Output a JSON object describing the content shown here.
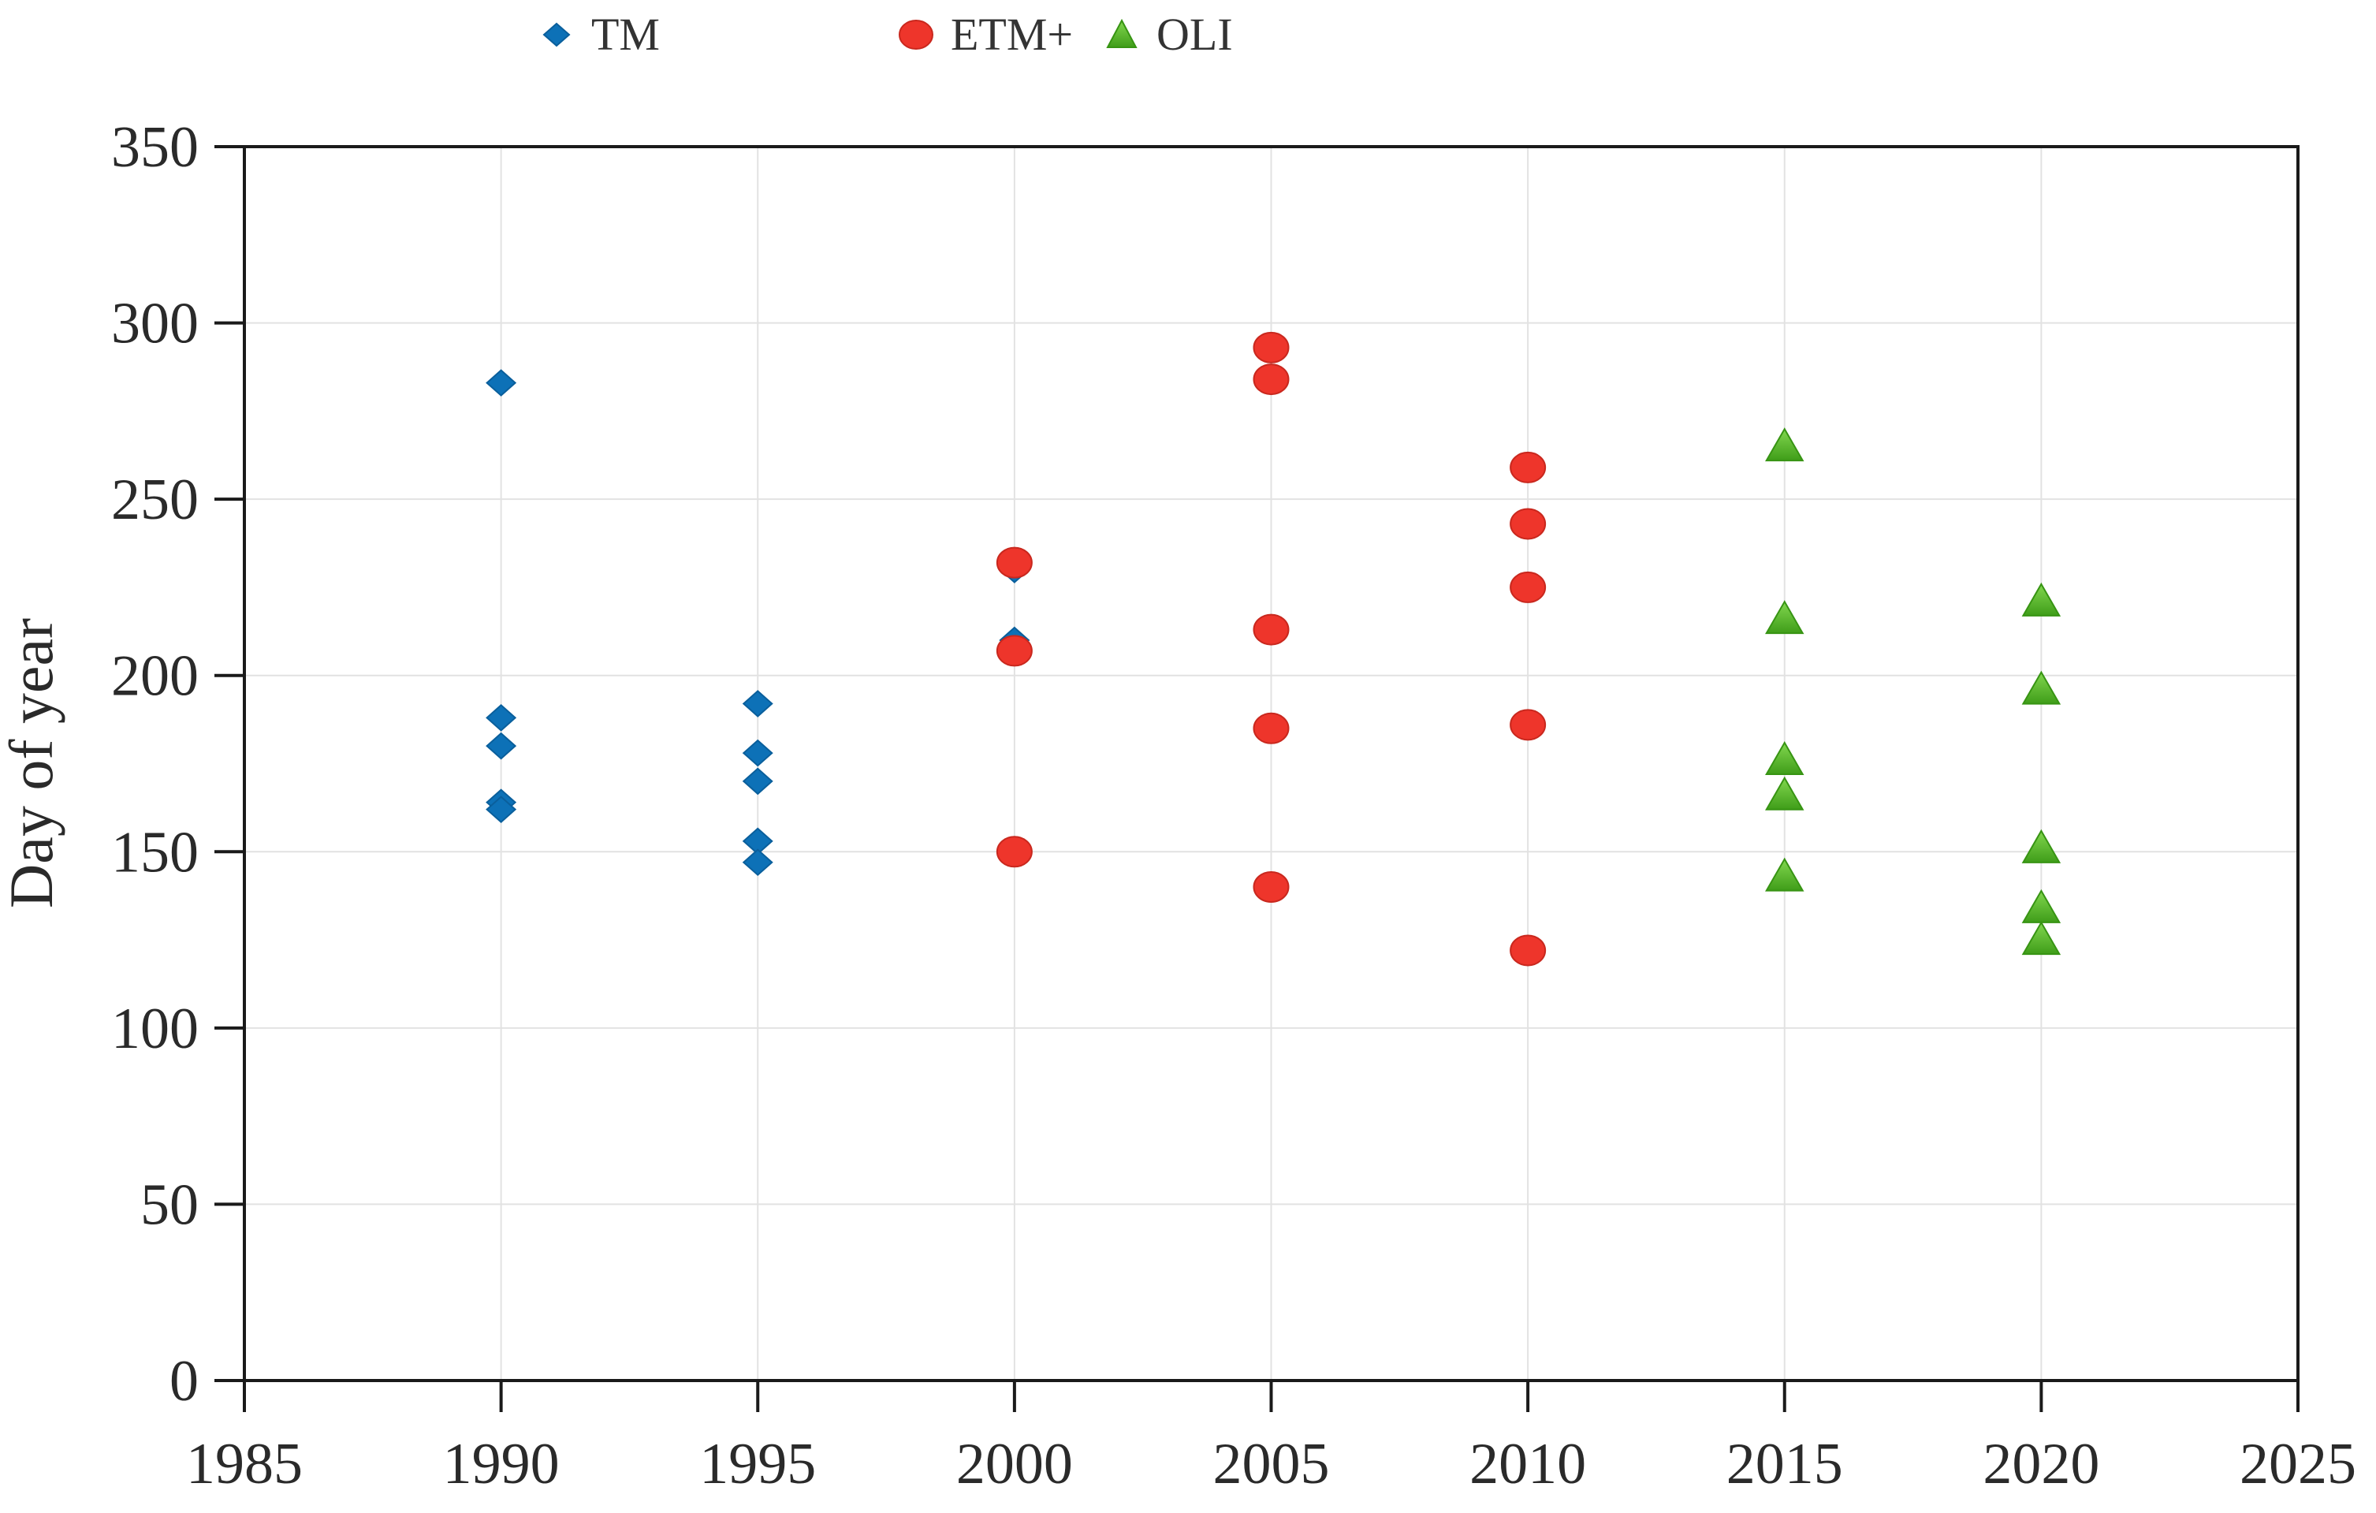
{
  "chart_data": {
    "type": "scatter",
    "title": "",
    "xlabel": "",
    "ylabel": "Day of year",
    "xlim": [
      1985,
      2025
    ],
    "ylim": [
      0,
      350
    ],
    "x_ticks": [
      1985,
      1990,
      1995,
      2000,
      2005,
      2010,
      2015,
      2020,
      2025
    ],
    "y_ticks": [
      0,
      50,
      100,
      150,
      200,
      250,
      300,
      350
    ],
    "grid": true,
    "legend_position": "top-center",
    "background_color": "#ffffff",
    "grid_color": "#e2e2e2",
    "axis_color": "#1a1a1a",
    "tick_label_color": "#2a2a2a",
    "series": [
      {
        "name": "TM",
        "marker": "diamond",
        "color": "#0d71b7",
        "edge_color": "#0a5f9c",
        "points": [
          {
            "x": 1990,
            "y": 283
          },
          {
            "x": 1990,
            "y": 188
          },
          {
            "x": 1990,
            "y": 180
          },
          {
            "x": 1990,
            "y": 164
          },
          {
            "x": 1990,
            "y": 162
          },
          {
            "x": 1995,
            "y": 192
          },
          {
            "x": 1995,
            "y": 178
          },
          {
            "x": 1995,
            "y": 170
          },
          {
            "x": 1995,
            "y": 153
          },
          {
            "x": 1995,
            "y": 147
          },
          {
            "x": 2000,
            "y": 230
          },
          {
            "x": 2000,
            "y": 210
          }
        ]
      },
      {
        "name": "ETM+",
        "marker": "circle",
        "color": "#ee352b",
        "edge_color": "#c9281e",
        "points": [
          {
            "x": 2000,
            "y": 232
          },
          {
            "x": 2000,
            "y": 207
          },
          {
            "x": 2000,
            "y": 150
          },
          {
            "x": 2005,
            "y": 293
          },
          {
            "x": 2005,
            "y": 284
          },
          {
            "x": 2005,
            "y": 213
          },
          {
            "x": 2005,
            "y": 185
          },
          {
            "x": 2005,
            "y": 140
          },
          {
            "x": 2010,
            "y": 259
          },
          {
            "x": 2010,
            "y": 243
          },
          {
            "x": 2010,
            "y": 225
          },
          {
            "x": 2010,
            "y": 186
          },
          {
            "x": 2010,
            "y": 122
          }
        ]
      },
      {
        "name": "OLI",
        "marker": "triangle",
        "color": "#54ab28",
        "color_light": "#82d74f",
        "color_dark": "#3f9d19",
        "edge_color": "#379413",
        "points": [
          {
            "x": 2015,
            "y": 265
          },
          {
            "x": 2015,
            "y": 216
          },
          {
            "x": 2015,
            "y": 176
          },
          {
            "x": 2015,
            "y": 166
          },
          {
            "x": 2015,
            "y": 143
          },
          {
            "x": 2020,
            "y": 221
          },
          {
            "x": 2020,
            "y": 196
          },
          {
            "x": 2020,
            "y": 151
          },
          {
            "x": 2020,
            "y": 134
          },
          {
            "x": 2020,
            "y": 125
          }
        ]
      }
    ]
  }
}
